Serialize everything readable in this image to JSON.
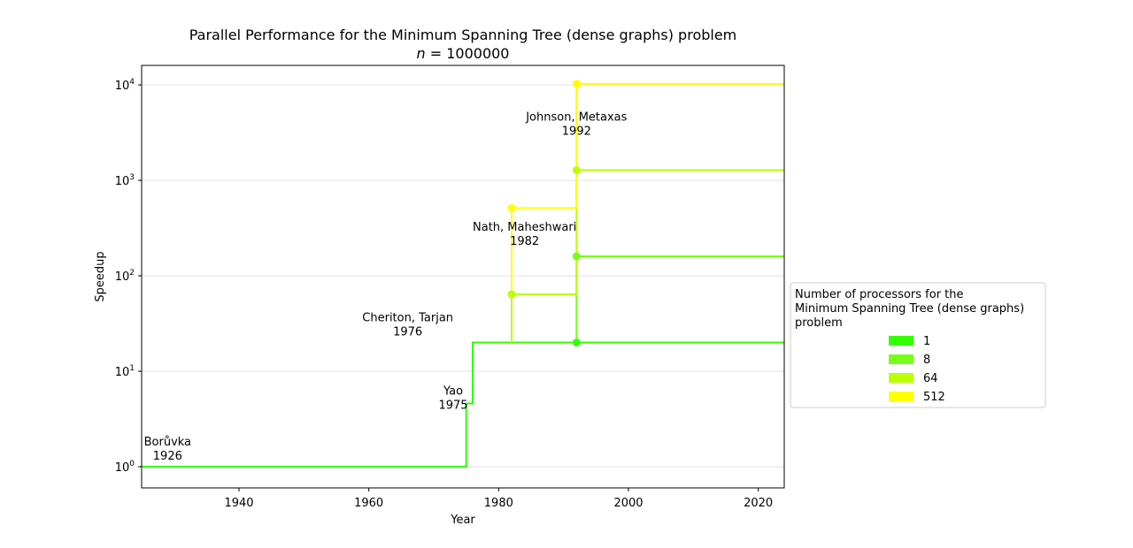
{
  "chart_data": {
    "type": "line",
    "title": "Parallel Performance for the Minimum Spanning Tree (dense graphs) problem",
    "subtitle": "n = 1000000",
    "xlabel": "Year",
    "ylabel": "Speedup",
    "xlim": [
      1925,
      2024
    ],
    "ylim": [
      0.6,
      16000
    ],
    "yscale": "log",
    "grid": "y-major",
    "x_ticks": [
      1940,
      1960,
      1980,
      2000,
      2020
    ],
    "y_ticks": [
      {
        "value": 1,
        "label": "10",
        "exp": "0"
      },
      {
        "value": 10,
        "label": "10",
        "exp": "1"
      },
      {
        "value": 100,
        "label": "10",
        "exp": "2"
      },
      {
        "value": 1000,
        "label": "10",
        "exp": "3"
      },
      {
        "value": 10000,
        "label": "10",
        "exp": "4"
      }
    ],
    "legend": {
      "title_lines": [
        "Number of processors for the",
        "Minimum Spanning Tree (dense graphs)",
        "problem"
      ],
      "placement": "center-right outside"
    },
    "series": [
      {
        "name": "1",
        "color": "#33ff00",
        "marker_points": [
          [
            1992,
            20
          ]
        ],
        "points": [
          [
            1925,
            1
          ],
          [
            1975,
            1
          ],
          [
            1975,
            4.6
          ],
          [
            1976,
            4.6
          ],
          [
            1976,
            20
          ],
          [
            2024,
            20
          ]
        ]
      },
      {
        "name": "8",
        "color": "#77ff1a",
        "marker_points": [
          [
            1992,
            160
          ]
        ],
        "points": [
          [
            1992,
            20
          ],
          [
            1992,
            160
          ],
          [
            2024,
            160
          ]
        ]
      },
      {
        "name": "64",
        "color": "#bbff00",
        "marker_points": [
          [
            1982,
            64
          ],
          [
            1992,
            1280
          ]
        ],
        "points": [
          [
            1982,
            20
          ],
          [
            1982,
            64
          ],
          [
            1992,
            64
          ],
          [
            1992,
            1280
          ],
          [
            2024,
            1280
          ]
        ]
      },
      {
        "name": "512",
        "color": "#ffff00",
        "marker_points": [
          [
            1982,
            512
          ],
          [
            1992,
            10240
          ]
        ],
        "points": [
          [
            1982,
            64
          ],
          [
            1982,
            512
          ],
          [
            1992,
            512
          ],
          [
            1992,
            10240
          ],
          [
            2024,
            10240
          ]
        ]
      }
    ],
    "annotations": [
      {
        "lines": [
          "Borůvka",
          "1926"
        ],
        "x": 1929,
        "y": 1.35
      },
      {
        "lines": [
          "Yao",
          "1975"
        ],
        "x": 1973,
        "y": 4.6
      },
      {
        "lines": [
          "Cheriton, Tarjan",
          "1976"
        ],
        "x": 1966,
        "y": 27
      },
      {
        "lines": [
          "Nath, Maheshwari",
          "1982"
        ],
        "x": 1984,
        "y": 240
      },
      {
        "lines": [
          "Johnson, Metaxas",
          "1992"
        ],
        "x": 1992,
        "y": 3400
      }
    ]
  }
}
